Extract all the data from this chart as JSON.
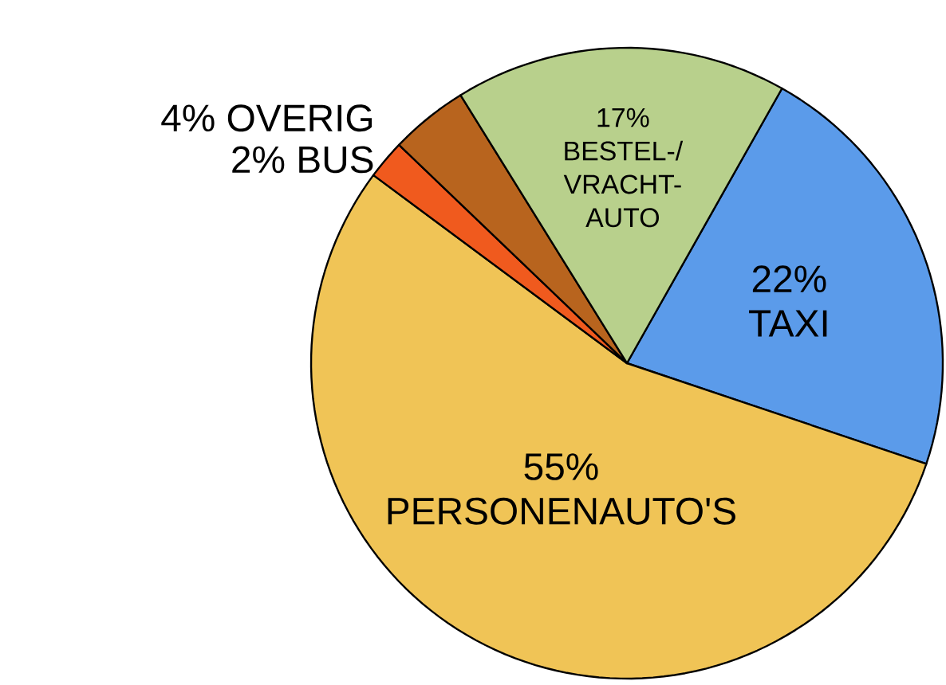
{
  "chart_data": {
    "type": "pie",
    "categories": [
      "TAXI",
      "PERSONENAUTO'S",
      "BUS",
      "OVERIG",
      "BESTEL-/ VRACHT-AUTO"
    ],
    "values": [
      22,
      55,
      2,
      4,
      17
    ],
    "value_labels": [
      "22%",
      "55%",
      "2%",
      "4%",
      "17%"
    ],
    "colors": [
      "#5b9bea",
      "#f0c456",
      "#f05a1e",
      "#b8641e",
      "#b8d08c"
    ]
  }
}
